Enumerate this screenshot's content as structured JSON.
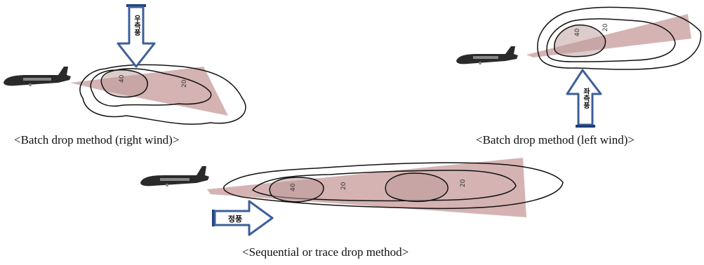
{
  "captions": {
    "batch_right": "<Batch drop method (right wind)>",
    "batch_left": "<Batch drop method (left wind)>",
    "sequential": "<Sequential or trace drop method>"
  },
  "arrows": {
    "right_wind_label": "우측풍",
    "left_wind_label": "좌측풍",
    "head_wind_label": "정풍"
  },
  "contours": {
    "inner_label": "40",
    "outer_label": "20"
  },
  "colors": {
    "arrow_fill": "#ffffff",
    "arrow_stroke": "#3d5f9a",
    "arrow_bar": "#1f3f78",
    "retardant_zone": "#c79a9a",
    "contour_line": "#111111",
    "aircraft": "#2a2a2a"
  }
}
